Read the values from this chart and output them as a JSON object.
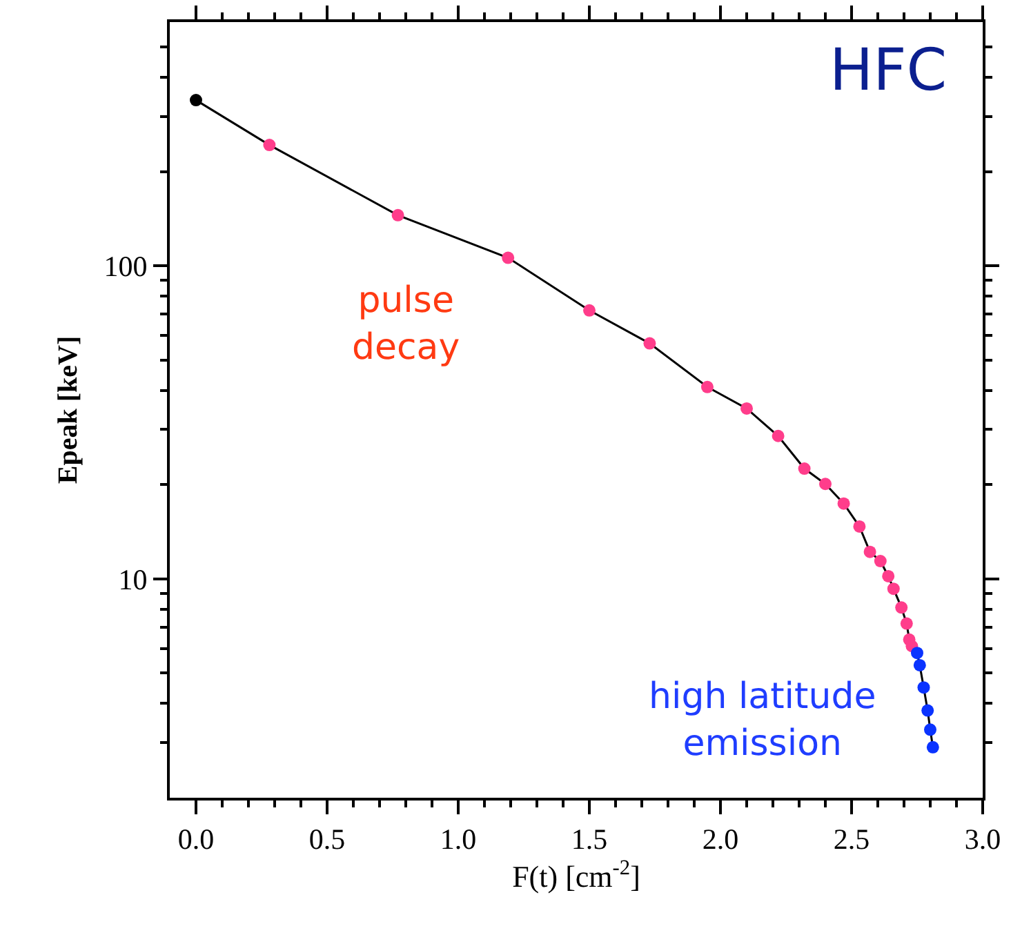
{
  "chart_data": {
    "type": "line",
    "title": "HFC",
    "xlabel": "F(t) [cm$^{-2}$]",
    "ylabel": "Epeak [keV]",
    "series": [
      {
        "color": "#000000",
        "colors": [
          "#000000",
          "#ff3d8b",
          "#ff3d8b",
          "#ff3d8b",
          "#ff3d8b",
          "#ff3d8b",
          "#ff3d8b",
          "#ff3d8b",
          "#ff3d8b",
          "#ff3d8b",
          "#ff3d8b",
          "#ff3d8b",
          "#ff3d8b",
          "#ff3d8b",
          "#ff3d8b",
          "#ff3d8b",
          "#ff3d8b",
          "#ff3d8b",
          "#ff3d8b",
          "#ff3d8b",
          "#ff3d8b",
          "#0a33ff",
          "#0a33ff",
          "#0a33ff",
          "#0a33ff",
          "#0a33ff",
          "#0a33ff"
        ],
        "x": [
          0.0,
          0.28,
          0.77,
          1.19,
          1.5,
          1.73,
          1.95,
          2.1,
          2.22,
          2.32,
          2.4,
          2.47,
          2.53,
          2.57,
          2.61,
          2.64,
          2.66,
          2.69,
          2.71,
          2.72,
          2.73,
          2.75,
          2.76,
          2.775,
          2.79,
          2.8,
          2.81
        ],
        "values": [
          338,
          243,
          145,
          106,
          72,
          56.5,
          41,
          35,
          28.6,
          22.5,
          20.1,
          17.4,
          14.7,
          12.2,
          11.4,
          10.2,
          9.3,
          8.1,
          7.2,
          6.4,
          6.1,
          5.8,
          5.3,
          4.5,
          3.8,
          3.3,
          2.9
        ]
      }
    ],
    "marker": "circle",
    "line_style": "solid",
    "log": "y",
    "xlim": [
      -0.1,
      3.0
    ],
    "xticks": [
      {
        "value": 0.0,
        "label": "0.0"
      },
      0.5,
      {
        "value": 1.0,
        "label": "1.0"
      },
      1.5,
      {
        "value": 2.0,
        "label": "2.0"
      },
      2.5,
      {
        "value": 3.0,
        "label": "3.0"
      },
      {
        "value": 0.1,
        "label": null
      },
      {
        "value": 0.2,
        "label": null
      },
      {
        "value": 0.3,
        "label": null
      },
      {
        "value": 0.4,
        "label": null
      },
      {
        "value": 0.6,
        "label": null
      },
      {
        "value": 0.7,
        "label": null
      },
      {
        "value": 0.8,
        "label": null
      },
      {
        "value": 0.9,
        "label": null
      },
      {
        "value": 1.1,
        "label": null
      },
      {
        "value": 1.2,
        "label": null
      },
      {
        "value": 1.3,
        "label": null
      },
      {
        "value": 1.4,
        "label": null
      },
      {
        "value": 1.6,
        "label": null
      },
      {
        "value": 1.7,
        "label": null
      },
      {
        "value": 1.8,
        "label": null
      },
      {
        "value": 1.9,
        "label": null
      },
      {
        "value": 2.1,
        "label": null
      },
      {
        "value": 2.2,
        "label": null
      },
      {
        "value": 2.3,
        "label": null
      },
      {
        "value": 2.4,
        "label": null
      },
      {
        "value": 2.6,
        "label": null
      },
      {
        "value": 2.7,
        "label": null
      },
      {
        "value": 2.8,
        "label": null
      },
      {
        "value": 2.9,
        "label": null
      }
    ],
    "ylim": [
      2,
      600
    ],
    "yticks": [
      10,
      100,
      {
        "value": 3,
        "label": null
      },
      {
        "value": 4,
        "label": null
      },
      {
        "value": 5,
        "label": null
      },
      {
        "value": 6,
        "label": null
      },
      {
        "value": 7,
        "label": null
      },
      {
        "value": 8,
        "label": null
      },
      {
        "value": 9,
        "label": null
      },
      {
        "value": 20,
        "label": null
      },
      {
        "value": 30,
        "label": null
      },
      {
        "value": 40,
        "label": null
      },
      {
        "value": 50,
        "label": null
      },
      {
        "value": 60,
        "label": null
      },
      {
        "value": 70,
        "label": null
      },
      {
        "value": 80,
        "label": null
      },
      {
        "value": 90,
        "label": null
      },
      {
        "value": 200,
        "label": null
      },
      {
        "value": 300,
        "label": null
      },
      {
        "value": 400,
        "label": null
      },
      {
        "value": 500,
        "label": null
      }
    ],
    "annotations": [
      "pulse\ndecay",
      "high latitude\nemission"
    ]
  }
}
